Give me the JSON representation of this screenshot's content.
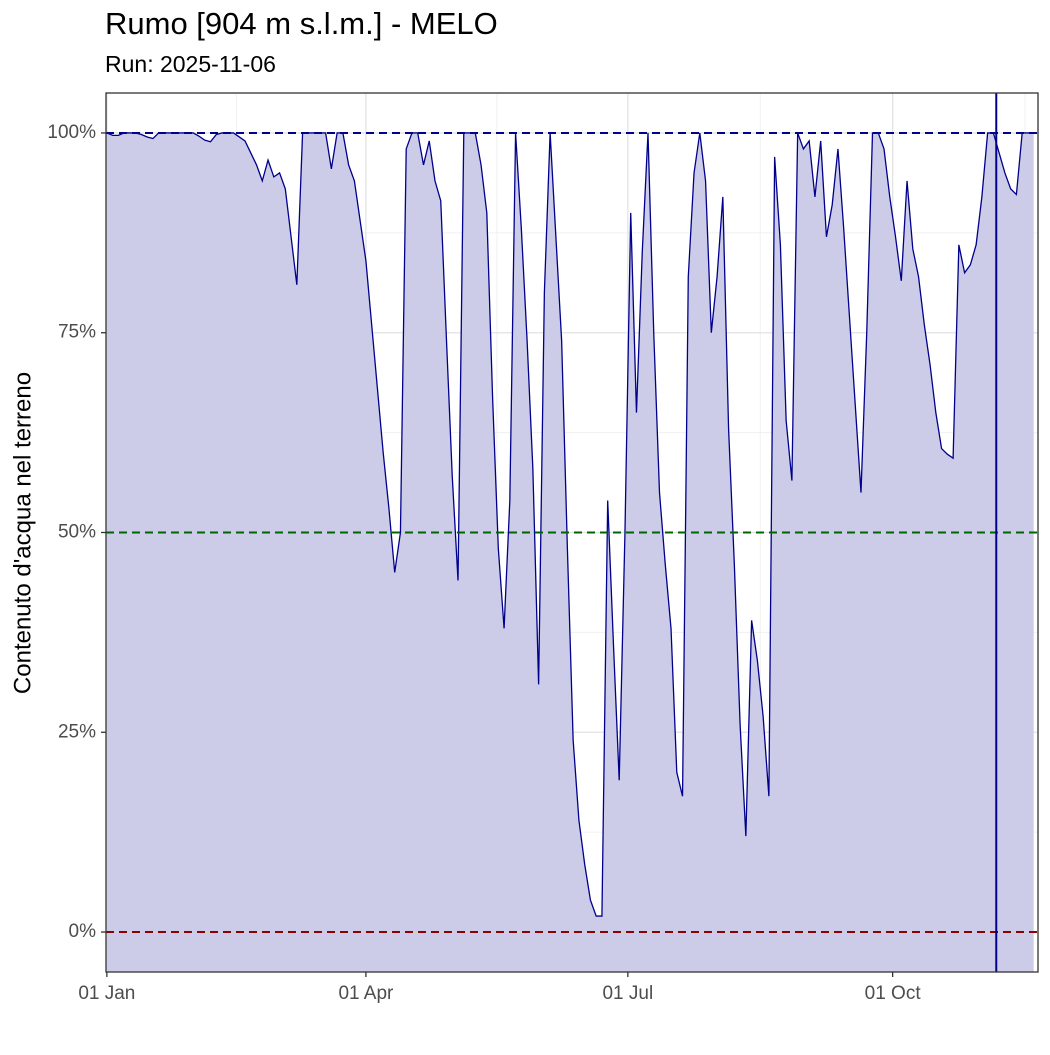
{
  "chart_data": {
    "type": "area",
    "title": "Rumo [904 m s.l.m.] - MELO",
    "subtitle": "Run: 2025-11-06",
    "y_label": "Contenuto d'acqua nel terreno",
    "x": [
      "01 Jan",
      "03 Jan",
      "05 Jan",
      "07 Jan",
      "09 Jan",
      "11 Jan",
      "13 Jan",
      "15 Jan",
      "17 Jan",
      "19 Jan",
      "21 Jan",
      "23 Jan",
      "25 Jan",
      "27 Jan",
      "29 Jan",
      "31 Jan",
      "02 Feb",
      "04 Feb",
      "06 Feb",
      "08 Feb",
      "10 Feb",
      "12 Feb",
      "14 Feb",
      "16 Feb",
      "18 Feb",
      "20 Feb",
      "22 Feb",
      "24 Feb",
      "26 Feb",
      "28 Feb",
      "02 Mar",
      "04 Mar",
      "06 Mar",
      "08 Mar",
      "10 Mar",
      "12 Mar",
      "14 Mar",
      "16 Mar",
      "18 Mar",
      "20 Mar",
      "22 Mar",
      "24 Mar",
      "26 Mar",
      "28 Mar",
      "30 Mar",
      "01 Apr",
      "03 Apr",
      "05 Apr",
      "07 Apr",
      "09 Apr",
      "11 Apr",
      "13 Apr",
      "15 Apr",
      "17 Apr",
      "19 Apr",
      "21 Apr",
      "23 Apr",
      "25 Apr",
      "27 Apr",
      "29 Apr",
      "01 May",
      "03 May",
      "05 May",
      "07 May",
      "09 May",
      "11 May",
      "13 May",
      "15 May",
      "17 May",
      "19 May",
      "21 May",
      "23 May",
      "25 May",
      "27 May",
      "29 May",
      "31 May",
      "02 Jun",
      "04 Jun",
      "06 Jun",
      "08 Jun",
      "10 Jun",
      "12 Jun",
      "14 Jun",
      "16 Jun",
      "18 Jun",
      "20 Jun",
      "22 Jun",
      "24 Jun",
      "26 Jun",
      "28 Jun",
      "30 Jun",
      "02 Jul",
      "04 Jul",
      "06 Jul",
      "08 Jul",
      "10 Jul",
      "12 Jul",
      "14 Jul",
      "16 Jul",
      "18 Jul",
      "20 Jul",
      "22 Jul",
      "24 Jul",
      "26 Jul",
      "28 Jul",
      "30 Jul",
      "01 Aug",
      "03 Aug",
      "05 Aug",
      "07 Aug",
      "09 Aug",
      "11 Aug",
      "13 Aug",
      "15 Aug",
      "17 Aug",
      "19 Aug",
      "21 Aug",
      "23 Aug",
      "25 Aug",
      "27 Aug",
      "29 Aug",
      "31 Aug",
      "02 Sep",
      "04 Sep",
      "06 Sep",
      "08 Sep",
      "10 Sep",
      "12 Sep",
      "14 Sep",
      "16 Sep",
      "18 Sep",
      "20 Sep",
      "22 Sep",
      "24 Sep",
      "26 Sep",
      "28 Sep",
      "30 Sep",
      "02 Oct",
      "04 Oct",
      "06 Oct",
      "08 Oct",
      "10 Oct",
      "12 Oct",
      "14 Oct",
      "16 Oct",
      "18 Oct",
      "20 Oct",
      "22 Oct",
      "24 Oct",
      "26 Oct",
      "28 Oct",
      "30 Oct",
      "01 Nov",
      "03 Nov",
      "05 Nov",
      "07 Nov",
      "09 Nov",
      "11 Nov",
      "13 Nov",
      "15 Nov",
      "17 Nov",
      "19 Nov"
    ],
    "values": [
      100,
      99.7,
      99.7,
      100,
      100,
      100,
      99.8,
      99.5,
      99.3,
      100,
      100,
      100,
      100,
      100,
      100,
      100,
      99.6,
      99.1,
      98.9,
      99.8,
      100,
      100,
      100,
      99.5,
      99,
      97.5,
      96,
      94,
      96.6,
      94.5,
      95,
      93,
      87,
      81,
      100,
      100,
      100,
      100,
      100,
      95.5,
      100,
      100,
      96,
      94,
      89,
      84,
      76,
      68,
      60,
      53,
      45,
      50,
      98,
      100,
      100,
      96,
      99,
      94,
      91.5,
      74,
      57,
      44,
      100,
      100,
      100,
      96,
      90,
      67,
      48,
      38,
      54,
      100,
      88,
      74,
      58,
      31,
      80,
      100,
      87,
      74,
      48,
      24,
      14,
      8.5,
      4,
      2,
      2,
      54,
      36,
      19,
      50,
      90,
      65,
      85,
      100,
      75,
      55,
      46,
      38,
      20,
      17,
      82,
      95,
      100,
      94,
      75,
      82,
      92,
      63,
      46,
      26,
      12,
      39,
      34,
      27,
      17,
      97,
      86,
      64,
      56.5,
      100,
      98,
      99,
      92,
      99,
      87,
      91,
      98,
      88,
      77,
      66,
      55,
      75,
      100,
      100,
      98,
      92,
      87,
      81.5,
      94,
      85.5,
      82,
      76,
      71,
      65,
      60.5,
      59.8,
      59.3,
      86,
      82.5,
      83.5,
      86,
      92,
      100,
      100,
      97.5,
      95,
      93,
      92.3,
      100,
      100,
      100
    ],
    "color": "#00008b",
    "fill": "#ccccE8",
    "xlim": [
      "01 Jan",
      "20 Nov"
    ],
    "xticks": [
      "01 Jan",
      "01 Apr",
      "01 Jul",
      "01 Oct"
    ],
    "ylim": [
      -5,
      105
    ],
    "yticks": [
      {
        "value": 0,
        "label": "0%"
      },
      {
        "value": 25,
        "label": "25%"
      },
      {
        "value": 50,
        "label": "50%"
      },
      {
        "value": 75,
        "label": "75%"
      },
      {
        "value": 100,
        "label": "100%"
      }
    ],
    "hlines": [
      {
        "value": 100,
        "color": "#00008b"
      },
      {
        "value": 50,
        "color": "#006400"
      },
      {
        "value": 0,
        "color": "#8b0000"
      }
    ],
    "vline": {
      "x": "06 Nov",
      "color": "#00008b"
    },
    "grid": true
  }
}
